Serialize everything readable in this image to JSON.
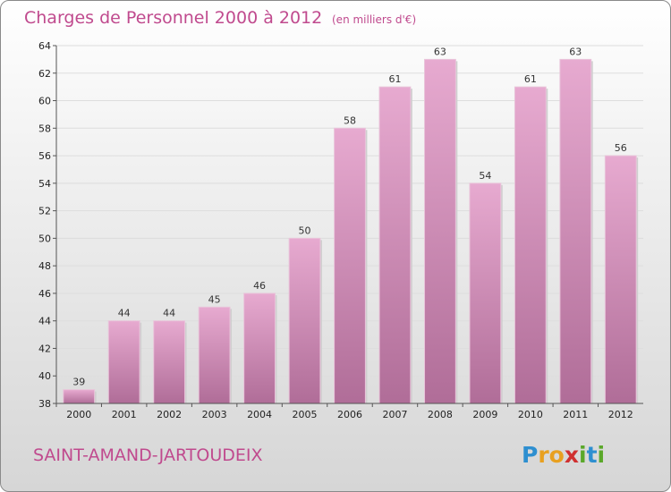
{
  "chart_data": {
    "type": "bar",
    "title": "Charges de Personnel 2000 à 2012",
    "subtitle": "(en milliers d'€)",
    "categories": [
      "2000",
      "2001",
      "2002",
      "2003",
      "2004",
      "2005",
      "2006",
      "2007",
      "2008",
      "2009",
      "2010",
      "2011",
      "2012"
    ],
    "values": [
      39,
      44,
      44,
      45,
      46,
      50,
      58,
      61,
      63,
      54,
      61,
      63,
      56
    ],
    "ylim": [
      38,
      64
    ],
    "yticks": [
      38,
      40,
      42,
      44,
      46,
      48,
      50,
      52,
      54,
      56,
      58,
      60,
      62,
      64
    ],
    "grid": true,
    "xlabel": "",
    "ylabel": ""
  },
  "location": "SAINT-AMAND-JARTOUDEIX",
  "logo": {
    "text": "Proxiti",
    "letter_colors": [
      "#2e8fd0",
      "#e8a020",
      "#e8a020",
      "#d03030",
      "#5aa82a",
      "#2e8fd0",
      "#5aa82a"
    ]
  },
  "colors": {
    "title": "#c04a8e",
    "bar_light": "#e7aad0",
    "bar_dark": "#b06d98",
    "grid": "#dddddd"
  }
}
